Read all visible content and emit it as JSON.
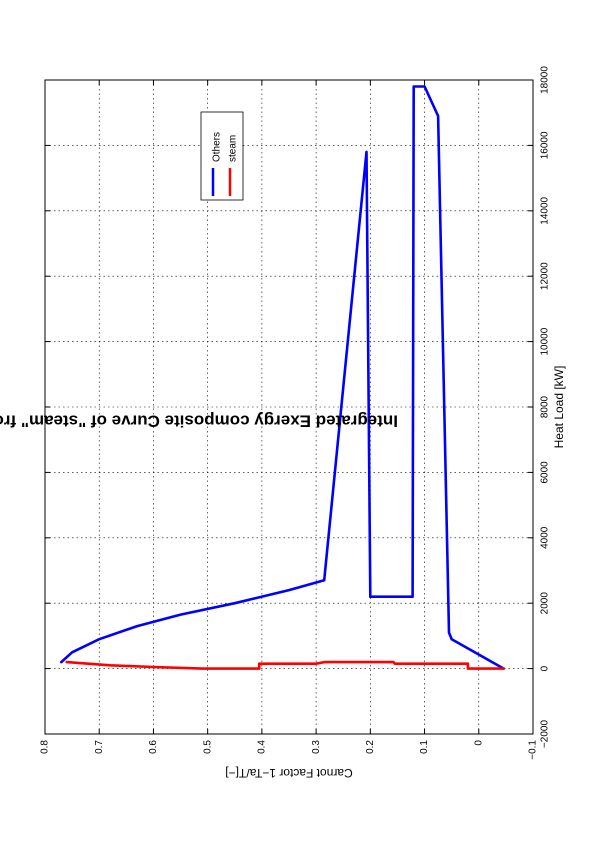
{
  "chart_data": {
    "type": "line",
    "title": "Integrated Exergy composite Curve of \"steam\" from model \"elec_prod\" (DefaultHeatCascade)",
    "xlabel": "Heat Load [kW]",
    "ylabel": "Carnot Factor 1−Ta/T[−]",
    "xlim": [
      -2000,
      18000
    ],
    "ylim": [
      -0.1,
      0.8
    ],
    "xticks": [
      "−2000",
      "0",
      "2000",
      "4000",
      "6000",
      "8000",
      "10000",
      "12000",
      "14000",
      "16000",
      "18000"
    ],
    "yticks": [
      "−0.1",
      "0",
      "0.1",
      "0.2",
      "0.3",
      "0.4",
      "0.5",
      "0.6",
      "0.7",
      "0.8"
    ],
    "grid": true,
    "legend_position": "top-right",
    "series": [
      {
        "name": "Others",
        "color": "#0000ff",
        "points": [
          [
            0,
            -0.046
          ],
          [
            900,
            0.05
          ],
          [
            1100,
            0.055
          ],
          [
            16900,
            0.075
          ],
          [
            17800,
            0.1
          ],
          [
            17800,
            0.12
          ],
          [
            2200,
            0.122
          ],
          [
            2200,
            0.19
          ],
          [
            2200,
            0.2
          ],
          [
            15800,
            0.207
          ],
          [
            2700,
            0.285
          ],
          [
            2400,
            0.35
          ],
          [
            2000,
            0.45
          ],
          [
            1650,
            0.55
          ],
          [
            1300,
            0.63
          ],
          [
            900,
            0.7
          ],
          [
            500,
            0.75
          ],
          [
            200,
            0.77
          ]
        ]
      },
      {
        "name": "steam",
        "color": "#ff0000",
        "points": [
          [
            0,
            -0.046
          ],
          [
            0,
            0.02
          ],
          [
            150,
            0.02
          ],
          [
            150,
            0.155
          ],
          [
            200,
            0.157
          ],
          [
            200,
            0.285
          ],
          [
            150,
            0.3
          ],
          [
            150,
            0.405
          ],
          [
            0,
            0.405
          ],
          [
            0,
            0.51
          ],
          [
            50,
            0.6
          ],
          [
            100,
            0.68
          ],
          [
            200,
            0.76
          ]
        ]
      }
    ]
  }
}
